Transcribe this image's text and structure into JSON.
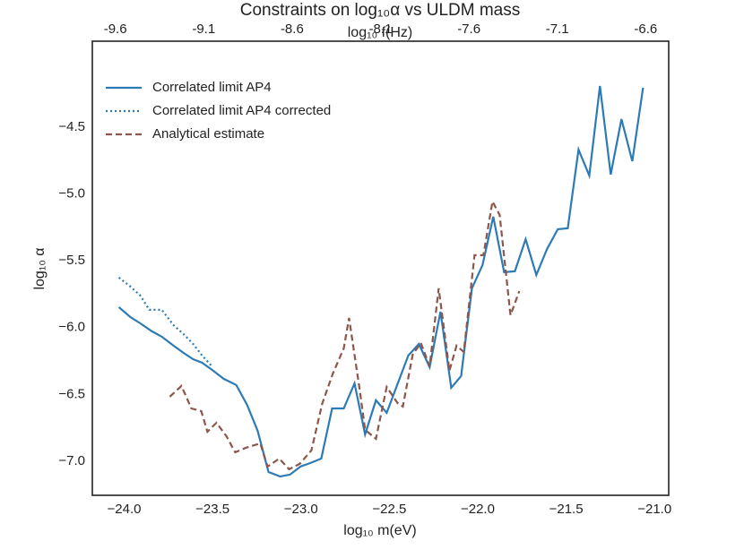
{
  "chart_data": {
    "type": "line",
    "title": "Constraints on log₁₀α vs ULDM mass",
    "xlabel": "log₁₀ m(eV)",
    "x2label": "log₁₀ f(Hz)",
    "ylabel": "log₁₀ α",
    "xlim": [
      -24.18,
      -20.92
    ],
    "xticks": [
      {
        "value": -24.0,
        "label": "−24.0"
      },
      {
        "value": -23.5,
        "label": "−23.5"
      },
      {
        "value": -23.0,
        "label": "−23.0"
      },
      {
        "value": -22.5,
        "label": "−22.5"
      },
      {
        "value": -22.0,
        "label": "−22.0"
      },
      {
        "value": -21.5,
        "label": "−21.5"
      },
      {
        "value": -21.0,
        "label": "−21.0"
      }
    ],
    "x2lim": [
      -9.73,
      -6.47
    ],
    "x2ticks": [
      -9.6,
      -9.1,
      -8.6,
      -8.1,
      -7.6,
      -7.1,
      -6.6
    ],
    "ylim": [
      -7.255,
      -3.857
    ],
    "yticks": [
      {
        "value": -4.5,
        "label": "−4.5"
      },
      {
        "value": -5.0,
        "label": "−5.0"
      },
      {
        "value": -5.5,
        "label": "−5.5"
      },
      {
        "value": -6.0,
        "label": "−6.0"
      },
      {
        "value": -6.5,
        "label": "−6.5"
      },
      {
        "value": -7.0,
        "label": "−7.0"
      }
    ],
    "grid": false,
    "legend": "upper left",
    "series": [
      {
        "name": "Correlated limit AP4",
        "color": "#2c7bb6",
        "linestyle": "solid",
        "x": [
          -24.03,
          -23.965,
          -23.909,
          -23.843,
          -23.787,
          -23.721,
          -23.665,
          -23.61,
          -23.559,
          -23.503,
          -23.437,
          -23.366,
          -23.305,
          -23.245,
          -23.184,
          -23.118,
          -23.062,
          -23.002,
          -22.946,
          -22.885,
          -22.824,
          -22.758,
          -22.697,
          -22.637,
          -22.576,
          -22.515,
          -22.454,
          -22.393,
          -22.333,
          -22.272,
          -22.211,
          -22.15,
          -22.094,
          -22.033,
          -21.973,
          -21.912,
          -21.851,
          -21.79,
          -21.729,
          -21.669,
          -21.608,
          -21.547,
          -21.491,
          -21.43,
          -21.369,
          -21.309,
          -21.248,
          -21.187,
          -21.126,
          -21.065
        ],
        "values": [
          -5.847,
          -5.921,
          -5.968,
          -6.028,
          -6.068,
          -6.135,
          -6.189,
          -6.236,
          -6.263,
          -6.316,
          -6.383,
          -6.43,
          -6.578,
          -6.772,
          -7.08,
          -7.114,
          -7.1,
          -7.04,
          -7.013,
          -6.98,
          -6.605,
          -6.605,
          -6.417,
          -6.799,
          -6.544,
          -6.638,
          -6.424,
          -6.209,
          -6.122,
          -6.296,
          -5.881,
          -6.45,
          -6.363,
          -5.706,
          -5.532,
          -5.17,
          -5.586,
          -5.579,
          -5.338,
          -5.606,
          -5.412,
          -5.264,
          -5.257,
          -4.668,
          -4.862,
          -4.192,
          -4.855,
          -4.44,
          -4.755,
          -4.205
        ]
      },
      {
        "name": "Correlated limit AP4 corrected",
        "color": "#2c7bb6",
        "linestyle": "dotted",
        "x": [
          -24.03,
          -23.965,
          -23.909,
          -23.858,
          -23.787,
          -23.721,
          -23.665,
          -23.61,
          -23.559,
          -23.503
        ],
        "values": [
          -5.626,
          -5.693,
          -5.76,
          -5.867,
          -5.867,
          -5.981,
          -6.048,
          -6.122,
          -6.209,
          -6.29
        ]
      },
      {
        "name": "Analytical estimate",
        "color": "#8c564b",
        "linestyle": "dashed",
        "x": [
          -23.742,
          -23.676,
          -23.62,
          -23.564,
          -23.529,
          -23.478,
          -23.422,
          -23.372,
          -23.311,
          -23.23,
          -23.189,
          -23.123,
          -23.067,
          -23.007,
          -22.941,
          -22.88,
          -22.819,
          -22.758,
          -22.728,
          -22.667,
          -22.637,
          -22.576,
          -22.515,
          -22.454,
          -22.424,
          -22.368,
          -22.322,
          -22.272,
          -22.221,
          -22.16,
          -22.12,
          -22.079,
          -22.018,
          -21.968,
          -21.917,
          -21.876,
          -21.815,
          -21.765
        ],
        "values": [
          -6.517,
          -6.437,
          -6.605,
          -6.625,
          -6.779,
          -6.712,
          -6.812,
          -6.933,
          -6.899,
          -6.866,
          -7.04,
          -6.98,
          -7.06,
          -7.02,
          -6.919,
          -6.571,
          -6.343,
          -6.155,
          -5.928,
          -6.471,
          -6.765,
          -6.832,
          -6.444,
          -6.564,
          -6.591,
          -6.202,
          -6.115,
          -6.29,
          -5.706,
          -6.323,
          -6.135,
          -6.182,
          -5.458,
          -5.458,
          -5.056,
          -5.157,
          -5.907,
          -5.727
        ]
      }
    ]
  }
}
